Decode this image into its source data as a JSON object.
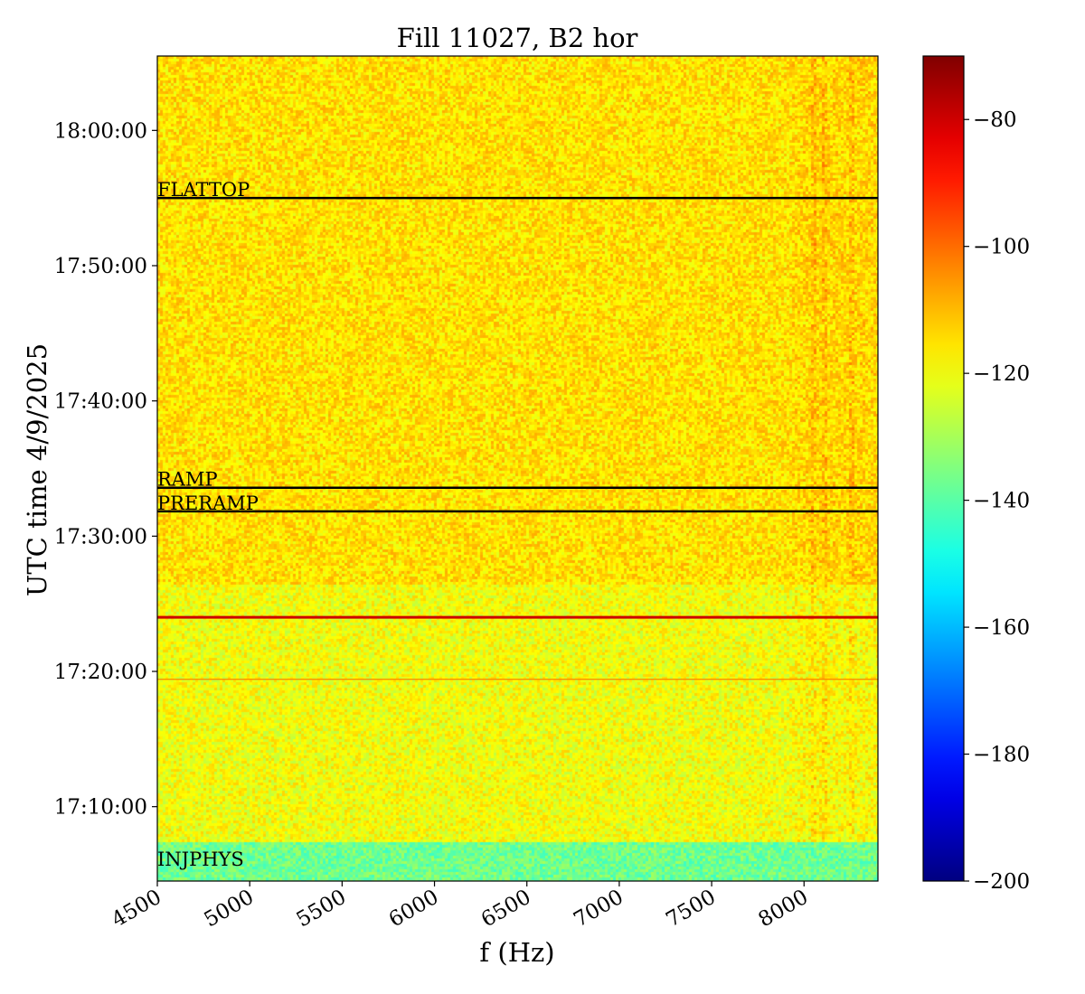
{
  "chart_data": {
    "type": "heatmap",
    "title": "Fill 11027, B2 hor",
    "xlabel": "f (Hz)",
    "ylabel": "UTC time 4/9/2025",
    "x_range": [
      4500,
      8400
    ],
    "x_ticks": [
      4500,
      5000,
      5500,
      6000,
      6500,
      7000,
      7500,
      8000
    ],
    "y_range": [
      "17:04:30",
      "18:05:30"
    ],
    "y_ticks": [
      "17:10:00",
      "17:20:00",
      "17:30:00",
      "17:40:00",
      "17:50:00",
      "18:00:00"
    ],
    "colorbar": {
      "colormap": "jet",
      "range": [
        -200,
        -70
      ],
      "ticks": [
        -80,
        -100,
        -120,
        -140,
        -160,
        -180,
        -200
      ]
    },
    "phase_markers": [
      {
        "label": "FLATTOP",
        "time": "17:55:00"
      },
      {
        "label": "RAMP",
        "time": "17:33:35"
      },
      {
        "label": "PRERAMP",
        "time": "17:31:50"
      },
      {
        "label": "INJPHYS",
        "time": "17:05:30"
      }
    ],
    "highlight_lines": [
      {
        "time": "17:24:00",
        "color": "#cc0000"
      },
      {
        "time": "17:19:25",
        "color": "#ff8000"
      }
    ],
    "regions": [
      {
        "from": "17:04:30",
        "to": "17:07:30",
        "level_db": -137
      },
      {
        "from": "17:07:30",
        "to": "17:26:30",
        "level_db": -120
      },
      {
        "from": "17:26:30",
        "to": "18:05:30",
        "level_db": -115
      }
    ],
    "spectral_lines_hz": [
      8050,
      8100,
      8250
    ],
    "grid": false
  }
}
